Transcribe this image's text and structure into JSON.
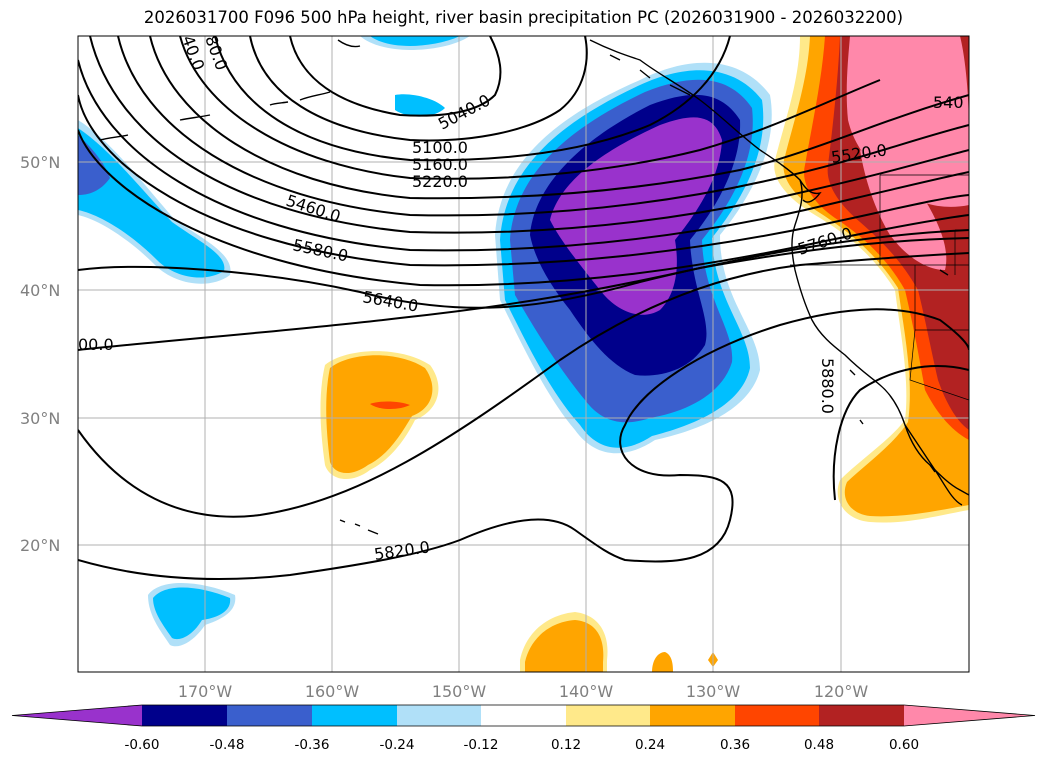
{
  "title": "2026031700 F096 500 hPa height, river basin precipitation PC (2026031900 - 2026032200)",
  "map": {
    "lat_labels": [
      "50°N",
      "40°N",
      "30°N",
      "20°N"
    ],
    "lon_labels": [
      "170°W",
      "160°W",
      "150°W",
      "140°W",
      "130°W",
      "120°W"
    ],
    "contour_labels": [
      "5040.0",
      "5100.0",
      "5160.0",
      "5220.0",
      "5460.0",
      "5580.0",
      "5640.0",
      "5520.0",
      "5760.0",
      "5880.0",
      "5820.0",
      "540",
      "80.0",
      "40.0",
      "00.0"
    ],
    "colors": {
      "neg_060": "#9932cc",
      "neg_048": "#00008b",
      "neg_036": "#3a5fcd",
      "neg_024": "#00bfff",
      "neg_012": "#b0e0f8",
      "pos_012": "#ffe98a",
      "pos_024": "#ffa500",
      "pos_036": "#ff4500",
      "pos_048": "#b22222",
      "pos_060": "#ff88aa"
    }
  },
  "colorbar": {
    "ticks": [
      "-0.60",
      "-0.48",
      "-0.36",
      "-0.24",
      "-0.12",
      "0.12",
      "0.24",
      "0.36",
      "0.48",
      "0.60"
    ],
    "colors": [
      "#9932cc",
      "#00008b",
      "#3a5fcd",
      "#00bfff",
      "#b0e0f8",
      "#ffffff",
      "#ffe98a",
      "#ffa500",
      "#ff4500",
      "#b22222",
      "#ff88aa"
    ]
  }
}
